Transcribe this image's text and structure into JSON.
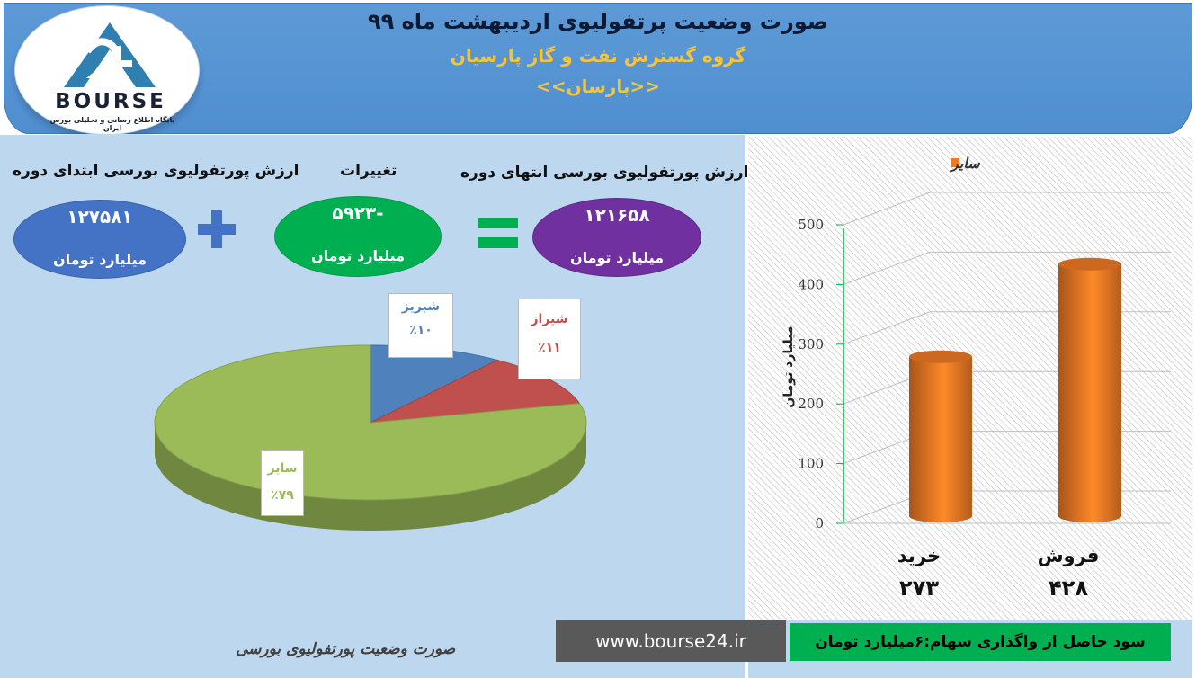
{
  "header": {
    "title": "صورت وضعیت پرتفولیوی اردیبهشت ماه ۹۹",
    "company": "گروه گسترش نفت و گاز پارسیان",
    "ticker": "<<پارسان>>"
  },
  "logo": {
    "brand": "BOURSE",
    "tagline": "پایگاه اطلاع رسانی و تحلیلی بورس ایران"
  },
  "summary": {
    "start_label": "ارزش پورتفولیوی بورسی ابتدای دوره",
    "start_value": "۱۲۷۵۸۱",
    "change_label": "تغییرات",
    "change_value": "-۵۹۲۳",
    "end_label": "ارزش پورتفولیوی بورسی انتهای دوره",
    "end_value": "۱۲۱۶۵۸",
    "unit": "میلیارد تومان"
  },
  "colors": {
    "header": "#5b9bd5",
    "panel": "#bdd7ee",
    "start_oval": "#4472c4",
    "change_oval": "#00b050",
    "end_oval": "#7030a0",
    "bar": "#f07a24"
  },
  "chart_data": [
    {
      "type": "pie",
      "categories": [
        "شبریز",
        "شیراز",
        "سایر"
      ],
      "values": [
        10,
        11,
        79
      ],
      "value_labels": [
        "٪۱۰",
        "٪۱۱",
        "٪۷۹"
      ],
      "colors": [
        "#4f81bd",
        "#c0504d",
        "#9bbb59"
      ],
      "label_colors": [
        "#4f81bd",
        "#c0504d",
        "#9bbb59"
      ]
    },
    {
      "type": "bar",
      "categories": [
        "خرید",
        "فروش"
      ],
      "values": [
        273,
        428
      ],
      "value_labels": [
        "۲۷۳",
        "۴۲۸"
      ],
      "series": [
        {
          "name": "سایر",
          "values": [
            273,
            428
          ]
        }
      ],
      "ylabel": "میلیارد تومان",
      "ylim": [
        0,
        500
      ],
      "yticks": [
        0,
        100,
        200,
        300,
        400,
        500
      ],
      "grid": true,
      "legend": "top"
    }
  ],
  "footer": {
    "caption": "صورت وضعیت پورتفولیوی بورسی",
    "website": "www.bourse24.ir",
    "gain_note": "سود حاصل از واگذاری سهام:۶میلیارد تومان"
  }
}
